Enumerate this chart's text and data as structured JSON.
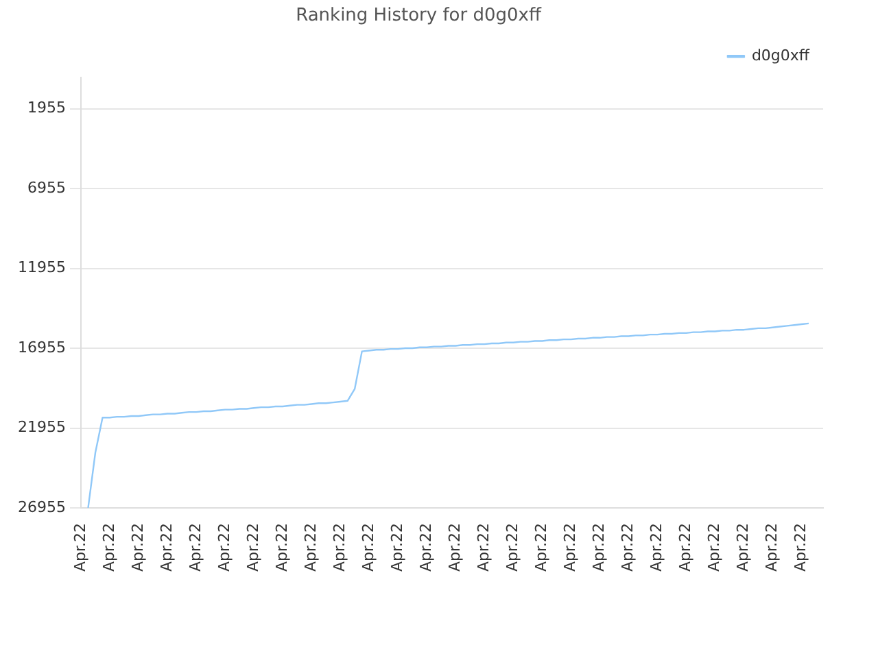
{
  "chart_data": {
    "type": "line",
    "title": "Ranking History for d0g0xff",
    "categories": [
      "Apr.22",
      null,
      null,
      null,
      "Apr.22",
      null,
      null,
      null,
      "Apr.22",
      null,
      null,
      null,
      "Apr.22",
      null,
      null,
      null,
      "Apr.22",
      null,
      null,
      null,
      "Apr.22",
      null,
      null,
      null,
      "Apr.22",
      null,
      null,
      null,
      "Apr.22",
      null,
      null,
      null,
      "Apr.22",
      null,
      null,
      null,
      "Apr.22",
      null,
      null,
      null,
      "Apr.22",
      null,
      null,
      null,
      "Apr.22",
      null,
      null,
      null,
      "Apr.22",
      null,
      null,
      null,
      "Apr.22",
      null,
      null,
      null,
      "Apr.22",
      null,
      null,
      null,
      "Apr.22",
      null,
      null,
      null,
      "Apr.22",
      null,
      null,
      null,
      "Apr.22",
      null,
      null,
      null,
      "Apr.22",
      null,
      null,
      null,
      "Apr.22",
      null,
      null,
      null,
      "Apr.22",
      null,
      null,
      null,
      "Apr.22",
      null,
      null,
      null,
      "Apr.22",
      null,
      null,
      null,
      "Apr.22",
      null,
      null,
      null,
      "Apr.22",
      null,
      null,
      null,
      "Apr.22",
      null,
      null,
      null
    ],
    "ylim": [
      26955,
      0
    ],
    "yticks": [
      1955,
      6955,
      11955,
      16955,
      21955,
      26955
    ],
    "series": [
      {
        "name": "d0g0xff",
        "color": "#90c8f8",
        "values": [
          null,
          26950,
          23500,
          21300,
          21300,
          21250,
          21250,
          21200,
          21200,
          21150,
          21100,
          21100,
          21050,
          21050,
          21000,
          20950,
          20950,
          20900,
          20900,
          20850,
          20800,
          20800,
          20750,
          20750,
          20700,
          20650,
          20650,
          20600,
          20600,
          20550,
          20500,
          20500,
          20450,
          20400,
          20400,
          20350,
          20300,
          20250,
          19500,
          17150,
          17100,
          17050,
          17050,
          17000,
          17000,
          16950,
          16950,
          16900,
          16900,
          16850,
          16850,
          16800,
          16800,
          16750,
          16750,
          16700,
          16700,
          16650,
          16650,
          16600,
          16600,
          16550,
          16550,
          16500,
          16500,
          16450,
          16450,
          16400,
          16400,
          16350,
          16350,
          16300,
          16300,
          16250,
          16250,
          16200,
          16200,
          16150,
          16150,
          16100,
          16100,
          16050,
          16050,
          16000,
          16000,
          15950,
          15950,
          15900,
          15900,
          15850,
          15850,
          15800,
          15800,
          15750,
          15700,
          15700,
          15650,
          15600,
          15550,
          15500,
          15450,
          15400,
          null,
          null
        ]
      }
    ],
    "grid": "y",
    "legend": "top right",
    "marker": "none",
    "line_style": "solid"
  }
}
